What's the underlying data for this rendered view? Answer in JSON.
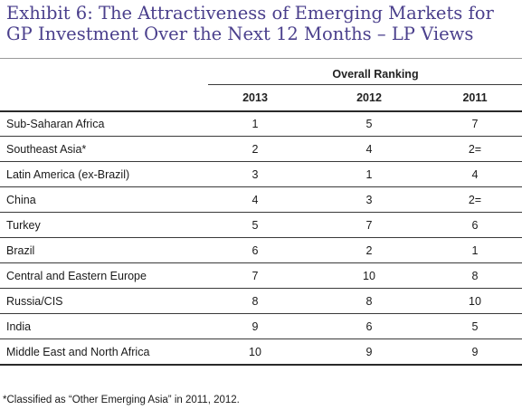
{
  "title": "Exhibit 6: The Attractiveness of Emerging Markets for GP Investment Over the Next 12 Months – LP Views",
  "table": {
    "group_header": "Overall Ranking",
    "columns": [
      "2013",
      "2012",
      "2011"
    ],
    "rows": [
      {
        "region": "Sub-Saharan Africa",
        "values": [
          "1",
          "5",
          "7"
        ]
      },
      {
        "region": "Southeast Asia*",
        "values": [
          "2",
          "4",
          "2="
        ]
      },
      {
        "region": "Latin America (ex-Brazil)",
        "values": [
          "3",
          "1",
          "4"
        ]
      },
      {
        "region": "China",
        "values": [
          "4",
          "3",
          "2="
        ]
      },
      {
        "region": "Turkey",
        "values": [
          "5",
          "7",
          "6"
        ]
      },
      {
        "region": "Brazil",
        "values": [
          "6",
          "2",
          "1"
        ]
      },
      {
        "region": "Central and Eastern Europe",
        "values": [
          "7",
          "10",
          "8"
        ]
      },
      {
        "region": "Russia/CIS",
        "values": [
          "8",
          "8",
          "10"
        ]
      },
      {
        "region": "India",
        "values": [
          "9",
          "6",
          "5"
        ]
      },
      {
        "region": "Middle East and North Africa",
        "values": [
          "10",
          "9",
          "9"
        ]
      }
    ]
  },
  "footnote": "*Classified as “Other Emerging Asia” in 2011, 2012.",
  "colors": {
    "title": "#4a3f8c",
    "rule": "#3a3a3a"
  }
}
